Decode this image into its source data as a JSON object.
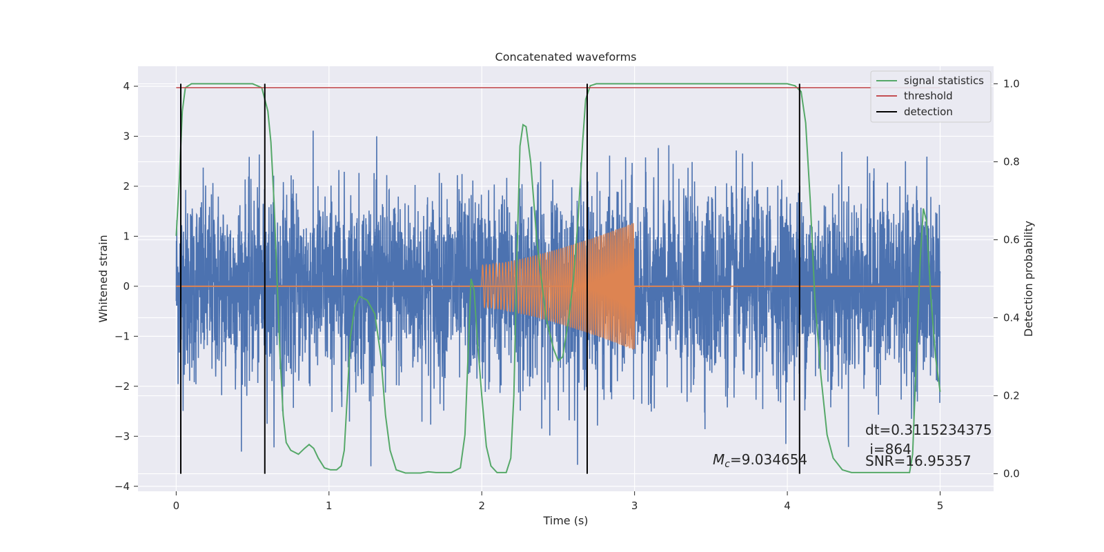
{
  "chart_data": {
    "type": "line",
    "title": "Concatenated waveforms",
    "xlabel": "Time (s)",
    "ylabel": "Whitened strain",
    "ylabel_right": "Detection probability",
    "xlim": [
      -0.25,
      5.35
    ],
    "ylim": [
      -4.1,
      4.4
    ],
    "ylim_right": [
      -0.045,
      1.045
    ],
    "x_ticks": [
      0,
      1,
      2,
      3,
      4,
      5
    ],
    "y_ticks": [
      -4,
      -3,
      -2,
      -1,
      0,
      1,
      2,
      3,
      4
    ],
    "y_ticks_right": [
      0.0,
      0.2,
      0.4,
      0.6,
      0.8,
      1.0
    ],
    "x_tick_labels": [
      "0",
      "1",
      "2",
      "3",
      "4",
      "5"
    ],
    "y_tick_labels": [
      "−4",
      "−3",
      "−2",
      "−1",
      "0",
      "1",
      "2",
      "3",
      "4"
    ],
    "y_tick_labels_right": [
      "0.0",
      "0.2",
      "0.4",
      "0.6",
      "0.8",
      "1.0"
    ],
    "grid": true,
    "legend_position": "top-right",
    "colors": {
      "noise": "#4c72b0",
      "injected": "#dd8452",
      "signal_statistics": "#55a868",
      "threshold": "#c44e52",
      "detection": "#000000",
      "background": "#eaeaf2",
      "grid": "#ffffff"
    },
    "series": [
      {
        "name": "",
        "axis": "left",
        "description_free": true,
        "noise_std": 0.95,
        "x_range": [
          0,
          5
        ],
        "sample_rate": 820
      },
      {
        "name": "",
        "axis": "left",
        "x_range": [
          2.0,
          3.0
        ],
        "amplitude_start": 0.42,
        "amplitude_end": 1.28,
        "cycles": 70
      },
      {
        "name": "signal statistics",
        "axis": "right",
        "points": [
          [
            0.0,
            0.61
          ],
          [
            0.02,
            0.75
          ],
          [
            0.04,
            0.93
          ],
          [
            0.06,
            0.99
          ],
          [
            0.1,
            1.0
          ],
          [
            0.5,
            1.0
          ],
          [
            0.56,
            0.99
          ],
          [
            0.6,
            0.93
          ],
          [
            0.62,
            0.85
          ],
          [
            0.64,
            0.7
          ],
          [
            0.66,
            0.5
          ],
          [
            0.68,
            0.3
          ],
          [
            0.7,
            0.15
          ],
          [
            0.72,
            0.08
          ],
          [
            0.75,
            0.06
          ],
          [
            0.8,
            0.05
          ],
          [
            0.84,
            0.065
          ],
          [
            0.87,
            0.075
          ],
          [
            0.9,
            0.065
          ],
          [
            0.93,
            0.04
          ],
          [
            0.97,
            0.015
          ],
          [
            1.01,
            0.01
          ],
          [
            1.05,
            0.01
          ],
          [
            1.08,
            0.02
          ],
          [
            1.1,
            0.06
          ],
          [
            1.12,
            0.2
          ],
          [
            1.14,
            0.35
          ],
          [
            1.17,
            0.43
          ],
          [
            1.2,
            0.455
          ],
          [
            1.25,
            0.445
          ],
          [
            1.3,
            0.41
          ],
          [
            1.34,
            0.3
          ],
          [
            1.37,
            0.15
          ],
          [
            1.4,
            0.06
          ],
          [
            1.44,
            0.01
          ],
          [
            1.5,
            0.002
          ],
          [
            1.6,
            0.002
          ],
          [
            1.65,
            0.005
          ],
          [
            1.7,
            0.003
          ],
          [
            1.8,
            0.003
          ],
          [
            1.86,
            0.015
          ],
          [
            1.89,
            0.1
          ],
          [
            1.91,
            0.3
          ],
          [
            1.93,
            0.5
          ],
          [
            1.95,
            0.47
          ],
          [
            1.97,
            0.35
          ],
          [
            2.0,
            0.2
          ],
          [
            2.03,
            0.07
          ],
          [
            2.06,
            0.02
          ],
          [
            2.1,
            0.003
          ],
          [
            2.16,
            0.003
          ],
          [
            2.19,
            0.04
          ],
          [
            2.21,
            0.2
          ],
          [
            2.23,
            0.55
          ],
          [
            2.25,
            0.84
          ],
          [
            2.27,
            0.895
          ],
          [
            2.29,
            0.89
          ],
          [
            2.32,
            0.8
          ],
          [
            2.36,
            0.6
          ],
          [
            2.42,
            0.4
          ],
          [
            2.47,
            0.32
          ],
          [
            2.5,
            0.29
          ],
          [
            2.53,
            0.3
          ],
          [
            2.57,
            0.4
          ],
          [
            2.6,
            0.5
          ],
          [
            2.63,
            0.65
          ],
          [
            2.66,
            0.85
          ],
          [
            2.68,
            0.96
          ],
          [
            2.71,
            0.995
          ],
          [
            2.75,
            1.0
          ],
          [
            4.0,
            1.0
          ],
          [
            4.05,
            0.995
          ],
          [
            4.09,
            0.98
          ],
          [
            4.12,
            0.9
          ],
          [
            4.15,
            0.7
          ],
          [
            4.18,
            0.45
          ],
          [
            4.22,
            0.25
          ],
          [
            4.26,
            0.1
          ],
          [
            4.3,
            0.04
          ],
          [
            4.36,
            0.01
          ],
          [
            4.42,
            0.003
          ],
          [
            4.8,
            0.003
          ],
          [
            4.82,
            0.05
          ],
          [
            4.84,
            0.25
          ],
          [
            4.87,
            0.55
          ],
          [
            4.89,
            0.68
          ],
          [
            4.91,
            0.65
          ],
          [
            4.94,
            0.45
          ],
          [
            4.97,
            0.3
          ],
          [
            5.0,
            0.21
          ]
        ]
      },
      {
        "name": "threshold",
        "axis": "right",
        "x": [
          0,
          5
        ],
        "values": [
          0.99,
          0.99
        ]
      },
      {
        "name": "detection",
        "axis": "right",
        "x_positions": [
          0.03,
          0.58,
          2.69,
          4.08
        ],
        "y_range": [
          0.0,
          1.0
        ]
      }
    ],
    "annotations": [
      {
        "text_id": "mc",
        "x": 3.5,
        "y": -3.45
      },
      {
        "text_id": "dt",
        "x": 4.5,
        "y": -2.9
      },
      {
        "text_id": "i",
        "x": 4.52,
        "y": -3.25
      },
      {
        "text_id": "snr",
        "x": 4.5,
        "y": -3.45
      }
    ],
    "annotation_text": {
      "mc_symbol": "M",
      "mc_subscript": "c",
      "mc_value": "=9.034654",
      "dt": "dt=0.3115234375",
      "i": " i=864",
      "snr": "SNR=16.95357"
    },
    "legend": [
      "signal statistics",
      "threshold",
      "detection"
    ]
  }
}
